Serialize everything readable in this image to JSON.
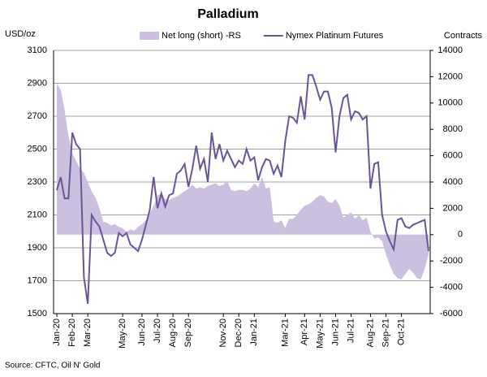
{
  "chart_data": {
    "type": "line",
    "title": "Palladium",
    "ylabel": "USD/oz",
    "y2label": "Contracts",
    "source": "Source: CFTC, Oil N' Gold",
    "legend": "top",
    "grid": true,
    "ylim": [
      1500,
      3100
    ],
    "yticks": [
      1500,
      1700,
      1900,
      2100,
      2300,
      2500,
      2700,
      2900,
      3100
    ],
    "y2lim": [
      -6000,
      14000
    ],
    "y2ticks": [
      -6000,
      -4000,
      -2000,
      0,
      2000,
      4000,
      6000,
      8000,
      10000,
      12000,
      14000
    ],
    "categories": [
      "Jan-20",
      null,
      null,
      null,
      "Feb-20",
      null,
      null,
      null,
      "Mar-20",
      null,
      null,
      null,
      null,
      null,
      null,
      null,
      null,
      "May-20",
      null,
      null,
      null,
      null,
      "Jun-20",
      null,
      null,
      null,
      "Jul-20",
      null,
      null,
      null,
      "Aug-20",
      null,
      null,
      null,
      "Sep-20",
      null,
      null,
      null,
      null,
      null,
      null,
      null,
      null,
      "Nov-20",
      null,
      null,
      null,
      "Dec-20",
      null,
      null,
      null,
      "Jan-21",
      null,
      null,
      null,
      null,
      null,
      null,
      null,
      "Mar-21",
      null,
      null,
      null,
      null,
      "Apr-21",
      null,
      null,
      null,
      "May-21",
      null,
      null,
      null,
      "Jun-21",
      null,
      null,
      null,
      "Jul-21",
      null,
      null,
      null,
      null,
      "Aug-21",
      null,
      null,
      null,
      "Sep-21",
      null,
      null,
      null,
      "Oct-21",
      null,
      null,
      null,
      null,
      null,
      null,
      null
    ],
    "series": [
      {
        "name": "Net long (short) -RS",
        "type": "area",
        "axis": "y2",
        "color": "#cbc0e0",
        "values": [
          11500,
          11000,
          9500,
          7500,
          6200,
          5600,
          5000,
          4700,
          4000,
          3300,
          2800,
          2000,
          1000,
          900,
          700,
          800,
          600,
          500,
          200,
          400,
          300,
          600,
          800,
          1100,
          1600,
          2200,
          3000,
          3100,
          2700,
          2600,
          2800,
          2900,
          3100,
          3300,
          3500,
          3800,
          3500,
          3600,
          3500,
          3700,
          3800,
          3900,
          3700,
          3800,
          4100,
          3400,
          3300,
          3400,
          3400,
          3300,
          3500,
          3900,
          3600,
          4400,
          3500,
          3600,
          1000,
          900,
          1100,
          500,
          1200,
          1200,
          1500,
          1900,
          2200,
          2300,
          2500,
          2800,
          3000,
          2900,
          2500,
          2400,
          2700,
          2200,
          1300,
          1500,
          1700,
          1200,
          1500,
          1100,
          1300,
          200,
          -300,
          -200,
          -500,
          -1500,
          -2300,
          -3000,
          -3300,
          -3400,
          -3000,
          -2600,
          -2900,
          -3300,
          -3400,
          -2600,
          -1500
        ]
      },
      {
        "name": "Nymex Platinum Futures",
        "type": "line",
        "axis": "y",
        "color": "#6a5498",
        "values": [
          2250,
          2330,
          2200,
          2200,
          2600,
          2530,
          2500,
          1720,
          1560,
          2100,
          2060,
          2030,
          1950,
          1870,
          1850,
          1870,
          1990,
          1970,
          1990,
          1920,
          1900,
          1880,
          1950,
          2040,
          2130,
          2330,
          2140,
          2230,
          2150,
          2220,
          2230,
          2350,
          2370,
          2410,
          2270,
          2380,
          2520,
          2380,
          2440,
          2300,
          2600,
          2440,
          2530,
          2430,
          2490,
          2440,
          2390,
          2430,
          2410,
          2500,
          2430,
          2450,
          2310,
          2390,
          2440,
          2430,
          2350,
          2400,
          2330,
          2550,
          2700,
          2690,
          2660,
          2820,
          2680,
          2950,
          2950,
          2880,
          2800,
          2850,
          2850,
          2750,
          2480,
          2700,
          2810,
          2830,
          2680,
          2730,
          2720,
          2680,
          2700,
          2260,
          2410,
          2420,
          2100,
          2000,
          1940,
          1890,
          2070,
          2080,
          2030,
          2020,
          2040,
          2050,
          2060,
          2070,
          1880
        ]
      }
    ]
  }
}
